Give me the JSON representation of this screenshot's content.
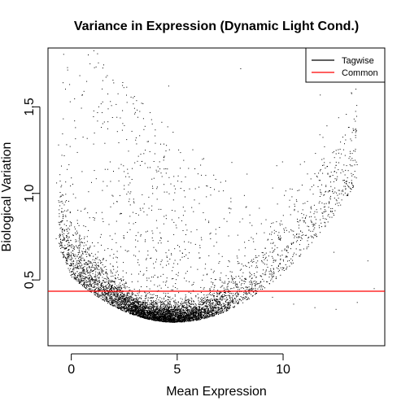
{
  "chart_data": {
    "type": "scatter",
    "title": "Variance in Expression (Dynamic Light Cond.)",
    "xlabel": "Mean Expression",
    "ylabel": "Biological Variation",
    "xlim": [
      -1.1,
      14.8
    ],
    "ylim": [
      0.12,
      1.84
    ],
    "x_ticks": [
      0,
      5,
      10
    ],
    "y_ticks": [
      0.5,
      1.0,
      1.5
    ],
    "x_tick_labels": [
      "0",
      "5",
      "10"
    ],
    "y_tick_labels": [
      "0.5",
      "1.0",
      "1.5"
    ],
    "grid": false,
    "point_color": "#000000",
    "series": [
      {
        "name": "Tagwise",
        "color": "#000000",
        "points": [
          [
            4.8,
            0.29
          ],
          [
            4.5,
            0.3
          ],
          [
            5.2,
            0.28
          ],
          [
            3.9,
            0.33
          ],
          [
            3.2,
            0.37
          ],
          [
            2.5,
            0.42
          ],
          [
            1.8,
            0.47
          ],
          [
            1.1,
            0.52
          ],
          [
            0.4,
            0.58
          ],
          [
            0.0,
            0.62
          ],
          [
            -0.5,
            0.7
          ],
          [
            6.0,
            0.33
          ],
          [
            6.8,
            0.36
          ],
          [
            7.5,
            0.4
          ],
          [
            8.3,
            0.42
          ],
          [
            9.5,
            0.4
          ],
          [
            10.5,
            0.36
          ],
          [
            11.5,
            0.34
          ],
          [
            12.5,
            0.33
          ],
          [
            13.5,
            0.37
          ],
          [
            14.3,
            0.45
          ],
          [
            0.8,
            1.8
          ],
          [
            0.4,
            1.68
          ],
          [
            4.6,
            1.62
          ],
          [
            1.7,
            1.68
          ],
          [
            8.0,
            1.72
          ],
          [
            9.7,
            1.16
          ],
          [
            14.0,
            0.61
          ],
          [
            12.4,
            0.66
          ],
          [
            -0.6,
            1.28
          ],
          [
            0.2,
            1.38
          ],
          [
            1.3,
            1.5
          ]
        ]
      },
      {
        "name": "Common",
        "color": "#ff0000",
        "type": "hline",
        "value": 0.435
      }
    ],
    "legend": {
      "position": "top-right",
      "entries": [
        {
          "label": "Tagwise",
          "color": "#000000"
        },
        {
          "label": "Common",
          "color": "#ff0000"
        }
      ]
    }
  }
}
